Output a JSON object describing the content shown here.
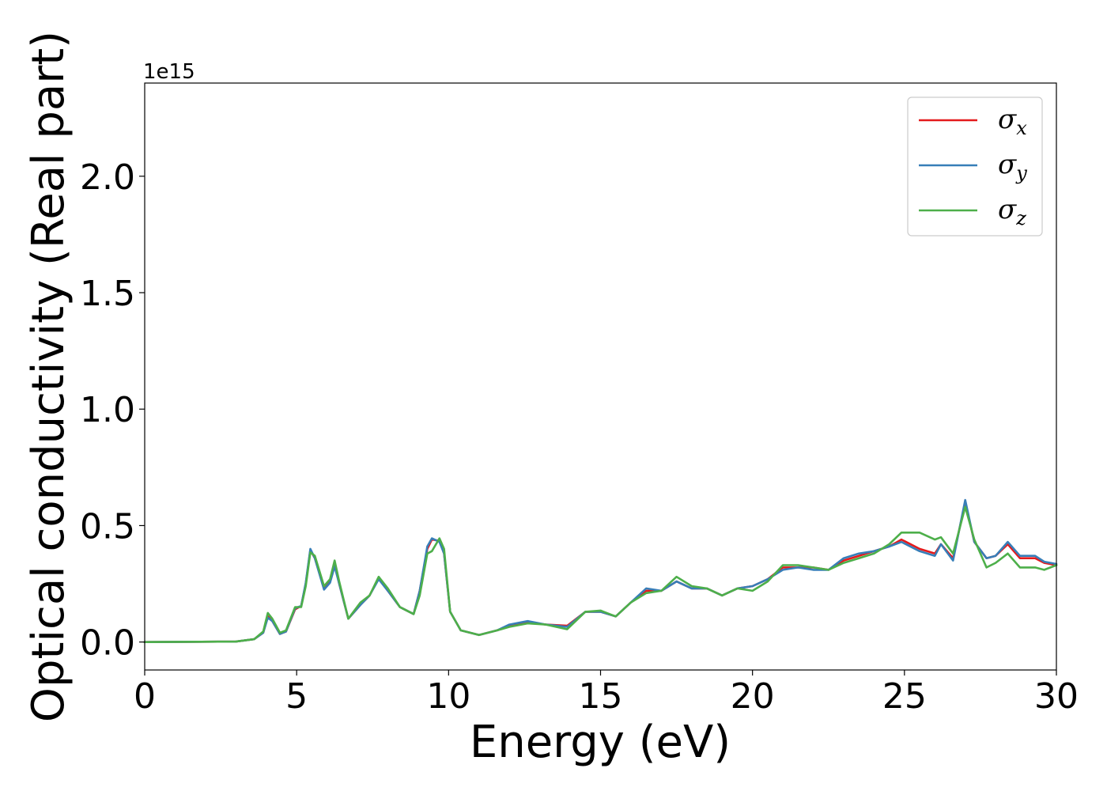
{
  "chart_data": {
    "type": "line",
    "title": "",
    "xlabel": "Energy (eV)",
    "ylabel": "Optical conductivity (Real part)",
    "y_offset_text": "1e15",
    "xlim": [
      0,
      30
    ],
    "ylim": [
      -0.12,
      2.4
    ],
    "y_scale_factor": 1000000000000000.0,
    "xticks": [
      0,
      5,
      10,
      15,
      20,
      25,
      30
    ],
    "xtick_labels": [
      "0",
      "5",
      "10",
      "15",
      "20",
      "25",
      "30"
    ],
    "yticks": [
      0.0,
      0.5,
      1.0,
      1.5,
      2.0
    ],
    "ytick_labels": [
      "0.0",
      "0.5",
      "1.0",
      "1.5",
      "2.0"
    ],
    "grid": false,
    "legend_position": "top-right",
    "series": [
      {
        "name": "σx",
        "symbol": "σ",
        "subscript": "x",
        "color": "#e41a1c",
        "points": [
          [
            0,
            0
          ],
          [
            3,
            0.002
          ],
          [
            3.6,
            0.012
          ],
          [
            3.9,
            0.04
          ],
          [
            4.05,
            0.11
          ],
          [
            4.2,
            0.09
          ],
          [
            4.45,
            0.035
          ],
          [
            4.65,
            0.045
          ],
          [
            4.95,
            0.14
          ],
          [
            5.15,
            0.155
          ],
          [
            5.3,
            0.25
          ],
          [
            5.45,
            0.395
          ],
          [
            5.6,
            0.36
          ],
          [
            5.9,
            0.23
          ],
          [
            6.1,
            0.26
          ],
          [
            6.25,
            0.335
          ],
          [
            6.4,
            0.25
          ],
          [
            6.7,
            0.1
          ],
          [
            7.1,
            0.16
          ],
          [
            7.4,
            0.2
          ],
          [
            7.7,
            0.275
          ],
          [
            8.0,
            0.22
          ],
          [
            8.4,
            0.15
          ],
          [
            8.85,
            0.12
          ],
          [
            9.05,
            0.22
          ],
          [
            9.3,
            0.4
          ],
          [
            9.45,
            0.44
          ],
          [
            9.7,
            0.435
          ],
          [
            9.85,
            0.38
          ],
          [
            10.05,
            0.13
          ],
          [
            10.4,
            0.05
          ],
          [
            11.0,
            0.03
          ],
          [
            11.6,
            0.05
          ],
          [
            12.0,
            0.07
          ],
          [
            12.6,
            0.085
          ],
          [
            13.2,
            0.075
          ],
          [
            13.9,
            0.07
          ],
          [
            14.5,
            0.13
          ],
          [
            15.0,
            0.13
          ],
          [
            15.5,
            0.11
          ],
          [
            16.0,
            0.17
          ],
          [
            16.5,
            0.22
          ],
          [
            17.0,
            0.22
          ],
          [
            17.5,
            0.26
          ],
          [
            18.0,
            0.23
          ],
          [
            18.5,
            0.23
          ],
          [
            19.0,
            0.2
          ],
          [
            19.5,
            0.23
          ],
          [
            20.0,
            0.24
          ],
          [
            20.5,
            0.27
          ],
          [
            21.0,
            0.32
          ],
          [
            21.5,
            0.32
          ],
          [
            22.0,
            0.32
          ],
          [
            22.5,
            0.31
          ],
          [
            23.0,
            0.35
          ],
          [
            23.5,
            0.37
          ],
          [
            24.0,
            0.39
          ],
          [
            24.5,
            0.41
          ],
          [
            24.9,
            0.44
          ],
          [
            25.5,
            0.4
          ],
          [
            26.0,
            0.38
          ],
          [
            26.2,
            0.42
          ],
          [
            26.6,
            0.36
          ],
          [
            27.0,
            0.6
          ],
          [
            27.3,
            0.43
          ],
          [
            27.7,
            0.36
          ],
          [
            28.0,
            0.37
          ],
          [
            28.4,
            0.42
          ],
          [
            28.8,
            0.36
          ],
          [
            29.3,
            0.36
          ],
          [
            29.6,
            0.34
          ],
          [
            30,
            0.33
          ]
        ]
      },
      {
        "name": "σy",
        "symbol": "σ",
        "subscript": "y",
        "color": "#377eb8",
        "points": [
          [
            0,
            0
          ],
          [
            3,
            0.002
          ],
          [
            3.6,
            0.012
          ],
          [
            3.9,
            0.04
          ],
          [
            4.05,
            0.105
          ],
          [
            4.2,
            0.09
          ],
          [
            4.45,
            0.035
          ],
          [
            4.65,
            0.045
          ],
          [
            4.95,
            0.145
          ],
          [
            5.15,
            0.155
          ],
          [
            5.3,
            0.255
          ],
          [
            5.45,
            0.4
          ],
          [
            5.6,
            0.36
          ],
          [
            5.9,
            0.225
          ],
          [
            6.1,
            0.255
          ],
          [
            6.25,
            0.325
          ],
          [
            6.4,
            0.25
          ],
          [
            6.7,
            0.1
          ],
          [
            7.1,
            0.16
          ],
          [
            7.4,
            0.2
          ],
          [
            7.7,
            0.27
          ],
          [
            8.0,
            0.22
          ],
          [
            8.4,
            0.15
          ],
          [
            8.85,
            0.12
          ],
          [
            9.05,
            0.22
          ],
          [
            9.3,
            0.41
          ],
          [
            9.45,
            0.445
          ],
          [
            9.7,
            0.43
          ],
          [
            9.85,
            0.38
          ],
          [
            10.05,
            0.13
          ],
          [
            10.4,
            0.05
          ],
          [
            11.0,
            0.03
          ],
          [
            11.6,
            0.05
          ],
          [
            12.0,
            0.075
          ],
          [
            12.6,
            0.09
          ],
          [
            13.2,
            0.075
          ],
          [
            13.9,
            0.065
          ],
          [
            14.5,
            0.13
          ],
          [
            15.0,
            0.13
          ],
          [
            15.5,
            0.11
          ],
          [
            16.0,
            0.17
          ],
          [
            16.5,
            0.23
          ],
          [
            17.0,
            0.22
          ],
          [
            17.5,
            0.26
          ],
          [
            18.0,
            0.23
          ],
          [
            18.5,
            0.23
          ],
          [
            19.0,
            0.2
          ],
          [
            19.5,
            0.23
          ],
          [
            20.0,
            0.24
          ],
          [
            20.5,
            0.27
          ],
          [
            21.0,
            0.31
          ],
          [
            21.5,
            0.32
          ],
          [
            22.0,
            0.31
          ],
          [
            22.5,
            0.31
          ],
          [
            23.0,
            0.36
          ],
          [
            23.5,
            0.38
          ],
          [
            24.0,
            0.39
          ],
          [
            24.5,
            0.41
          ],
          [
            24.9,
            0.43
          ],
          [
            25.5,
            0.39
          ],
          [
            26.0,
            0.37
          ],
          [
            26.2,
            0.42
          ],
          [
            26.6,
            0.35
          ],
          [
            27.0,
            0.61
          ],
          [
            27.3,
            0.43
          ],
          [
            27.7,
            0.36
          ],
          [
            28.0,
            0.37
          ],
          [
            28.4,
            0.43
          ],
          [
            28.8,
            0.37
          ],
          [
            29.3,
            0.37
          ],
          [
            29.6,
            0.345
          ],
          [
            30,
            0.335
          ]
        ]
      },
      {
        "name": "σz",
        "symbol": "σ",
        "subscript": "z",
        "color": "#4daf4a",
        "points": [
          [
            0,
            0
          ],
          [
            3,
            0.002
          ],
          [
            3.6,
            0.012
          ],
          [
            3.9,
            0.045
          ],
          [
            4.05,
            0.125
          ],
          [
            4.2,
            0.1
          ],
          [
            4.45,
            0.04
          ],
          [
            4.65,
            0.05
          ],
          [
            4.95,
            0.15
          ],
          [
            5.15,
            0.15
          ],
          [
            5.3,
            0.24
          ],
          [
            5.45,
            0.385
          ],
          [
            5.6,
            0.37
          ],
          [
            5.9,
            0.24
          ],
          [
            6.1,
            0.27
          ],
          [
            6.25,
            0.35
          ],
          [
            6.4,
            0.26
          ],
          [
            6.7,
            0.1
          ],
          [
            7.1,
            0.17
          ],
          [
            7.4,
            0.2
          ],
          [
            7.7,
            0.28
          ],
          [
            8.0,
            0.23
          ],
          [
            8.4,
            0.15
          ],
          [
            8.85,
            0.12
          ],
          [
            9.05,
            0.2
          ],
          [
            9.3,
            0.38
          ],
          [
            9.45,
            0.39
          ],
          [
            9.7,
            0.445
          ],
          [
            9.85,
            0.4
          ],
          [
            10.05,
            0.13
          ],
          [
            10.4,
            0.05
          ],
          [
            11.0,
            0.03
          ],
          [
            11.6,
            0.05
          ],
          [
            12.0,
            0.065
          ],
          [
            12.6,
            0.08
          ],
          [
            13.2,
            0.075
          ],
          [
            13.9,
            0.055
          ],
          [
            14.5,
            0.13
          ],
          [
            15.0,
            0.135
          ],
          [
            15.5,
            0.11
          ],
          [
            16.0,
            0.17
          ],
          [
            16.5,
            0.21
          ],
          [
            17.0,
            0.22
          ],
          [
            17.5,
            0.28
          ],
          [
            18.0,
            0.24
          ],
          [
            18.5,
            0.23
          ],
          [
            19.0,
            0.2
          ],
          [
            19.5,
            0.23
          ],
          [
            20.0,
            0.22
          ],
          [
            20.5,
            0.26
          ],
          [
            21.0,
            0.33
          ],
          [
            21.5,
            0.33
          ],
          [
            22.0,
            0.32
          ],
          [
            22.5,
            0.31
          ],
          [
            23.0,
            0.34
          ],
          [
            23.5,
            0.36
          ],
          [
            24.0,
            0.38
          ],
          [
            24.5,
            0.42
          ],
          [
            24.9,
            0.47
          ],
          [
            25.5,
            0.47
          ],
          [
            26.0,
            0.44
          ],
          [
            26.2,
            0.45
          ],
          [
            26.6,
            0.38
          ],
          [
            27.0,
            0.58
          ],
          [
            27.3,
            0.44
          ],
          [
            27.7,
            0.32
          ],
          [
            28.0,
            0.34
          ],
          [
            28.4,
            0.38
          ],
          [
            28.8,
            0.32
          ],
          [
            29.3,
            0.32
          ],
          [
            29.6,
            0.31
          ],
          [
            30,
            0.33
          ]
        ]
      }
    ]
  }
}
